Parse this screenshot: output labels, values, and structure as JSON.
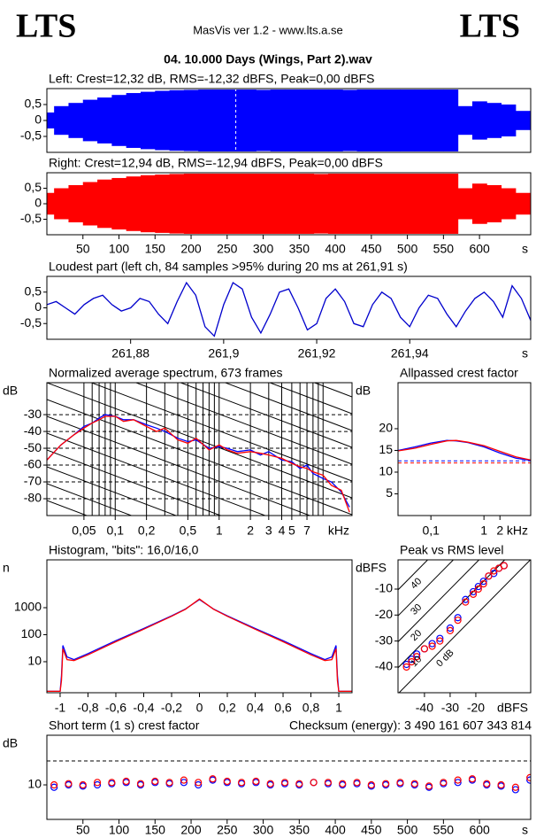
{
  "header": {
    "logo_left": "LTS",
    "logo_right": "LTS",
    "app": "MasVis ver 1.2 - www.lts.a.se",
    "file": "04. 10.000 Days (Wings, Part 2).wav"
  },
  "chart_data": [
    {
      "type": "waveform",
      "title": "Left: Crest=12,32 dB, RMS=-12,32 dBFS, Peak=0,00 dBFS",
      "color": "#0000ff",
      "x": [
        0,
        20,
        40,
        60,
        80,
        100,
        120,
        140,
        160,
        180,
        200,
        220,
        240,
        260,
        280,
        300,
        320,
        340,
        360,
        380,
        400,
        420,
        440,
        460,
        480,
        500,
        520,
        540,
        560,
        580,
        600,
        620,
        640,
        660
      ],
      "values": [
        0.25,
        0.45,
        0.55,
        0.65,
        0.72,
        0.8,
        0.86,
        0.9,
        0.93,
        0.95,
        0.96,
        0.97,
        0.97,
        0.97,
        0.97,
        0.96,
        0.97,
        0.97,
        0.97,
        0.97,
        0.97,
        0.96,
        0.97,
        0.97,
        0.97,
        0.97,
        0.97,
        0.97,
        0.97,
        0.45,
        0.6,
        0.55,
        0.5,
        0.3
      ],
      "marker_x": 262,
      "xlim": [
        0,
        671
      ],
      "ylim": [
        -1,
        1
      ],
      "yticks": [
        {
          "value": 0.5,
          "label": "0,5"
        },
        0,
        {
          "value": -0.5,
          "label": "-0,5"
        }
      ],
      "xticks": []
    },
    {
      "type": "waveform",
      "title": "Right: Crest=12,94 dB, RMS=-12,94 dBFS, Peak=0,00 dBFS",
      "color": "#ff0000",
      "x": [
        0,
        20,
        40,
        60,
        80,
        100,
        120,
        140,
        160,
        180,
        200,
        220,
        240,
        260,
        280,
        300,
        320,
        340,
        360,
        380,
        400,
        420,
        440,
        460,
        480,
        500,
        520,
        540,
        560,
        580,
        600,
        620,
        640,
        660
      ],
      "values": [
        0.35,
        0.5,
        0.6,
        0.7,
        0.78,
        0.83,
        0.88,
        0.92,
        0.94,
        0.96,
        0.97,
        0.97,
        0.97,
        0.97,
        0.97,
        0.97,
        0.97,
        0.97,
        0.97,
        0.96,
        0.97,
        0.97,
        0.97,
        0.97,
        0.97,
        0.97,
        0.97,
        0.97,
        0.97,
        0.5,
        0.65,
        0.6,
        0.5,
        0.35
      ],
      "xlim": [
        0,
        671
      ],
      "ylim": [
        -1,
        1
      ],
      "yticks": [
        {
          "value": 0.5,
          "label": "0,5"
        },
        0,
        {
          "value": -0.5,
          "label": "-0,5"
        }
      ],
      "xticks": [
        50,
        100,
        150,
        200,
        250,
        300,
        350,
        400,
        450,
        500,
        550,
        600
      ],
      "xunit": "s"
    },
    {
      "type": "line",
      "title": "Loudest part (left  ch, 84 samples >95% during 20 ms at 261,91 s)",
      "color": "#0000cc",
      "x": [
        261.862,
        261.864,
        261.866,
        261.868,
        261.87,
        261.872,
        261.874,
        261.876,
        261.878,
        261.88,
        261.882,
        261.884,
        261.886,
        261.888,
        261.89,
        261.892,
        261.894,
        261.896,
        261.898,
        261.9,
        261.902,
        261.904,
        261.906,
        261.908,
        261.91,
        261.912,
        261.914,
        261.916,
        261.918,
        261.92,
        261.922,
        261.924,
        261.926,
        261.928,
        261.93,
        261.932,
        261.934,
        261.936,
        261.938,
        261.94,
        261.942,
        261.944,
        261.946,
        261.948,
        261.95,
        261.952,
        261.954,
        261.956,
        261.958,
        261.96,
        261.962,
        261.964,
        261.966
      ],
      "values": [
        0.1,
        0.2,
        0.0,
        -0.2,
        0.1,
        0.3,
        0.4,
        0.1,
        -0.1,
        0.0,
        0.3,
        0.2,
        -0.2,
        -0.5,
        0.2,
        0.8,
        0.4,
        -0.6,
        -0.9,
        0.1,
        0.8,
        0.6,
        -0.3,
        -0.8,
        -0.2,
        0.5,
        0.6,
        0.0,
        -0.7,
        -0.5,
        0.3,
        0.6,
        0.2,
        -0.5,
        -0.6,
        0.1,
        0.5,
        0.3,
        -0.3,
        -0.6,
        0.0,
        0.4,
        0.3,
        -0.2,
        -0.6,
        -0.1,
        0.3,
        0.5,
        0.2,
        -0.3,
        0.7,
        0.3,
        -0.4
      ],
      "xlim": [
        261.862,
        261.966
      ],
      "ylim": [
        -1,
        1
      ],
      "yticks": [
        {
          "value": 0.5,
          "label": "0,5"
        },
        0,
        {
          "value": -0.5,
          "label": "-0,5"
        }
      ],
      "xticks": [
        {
          "value": 261.88,
          "label": "261,88"
        },
        {
          "value": 261.9,
          "label": "261,9"
        },
        {
          "value": 261.92,
          "label": "261,92"
        },
        {
          "value": 261.94,
          "label": "261,94"
        }
      ],
      "xunit": "s"
    },
    {
      "type": "line",
      "title": "Normalized average spectrum, 673 frames",
      "ylabel": "dB",
      "xunit": "kHz",
      "xlog": true,
      "grid": true,
      "diagonals": true,
      "x": [
        0.022,
        0.03,
        0.04,
        0.05,
        0.06,
        0.07,
        0.08,
        0.1,
        0.12,
        0.15,
        0.2,
        0.25,
        0.3,
        0.4,
        0.5,
        0.6,
        0.8,
        1,
        1.2,
        1.5,
        2,
        2.5,
        3,
        4,
        5,
        6,
        7,
        8,
        10,
        12,
        15,
        18
      ],
      "series": [
        {
          "color": "#0000ff",
          "values": [
            -57,
            -48,
            -42,
            -37,
            -35,
            -32,
            -30,
            -31,
            -33,
            -33,
            -36,
            -38,
            -40,
            -44,
            -46,
            -45,
            -50,
            -49,
            -50,
            -52,
            -51,
            -54,
            -52,
            -57,
            -58,
            -62,
            -60,
            -65,
            -68,
            -70,
            -76,
            -85
          ]
        },
        {
          "color": "#ff0000",
          "values": [
            -57,
            -48,
            -42,
            -38,
            -35,
            -33,
            -31,
            -31,
            -34,
            -33,
            -37,
            -40,
            -38,
            -45,
            -47,
            -44,
            -51,
            -48,
            -51,
            -53,
            -52,
            -53,
            -54,
            -56,
            -59,
            -61,
            -62,
            -64,
            -66,
            -72,
            -75,
            -88
          ]
        }
      ],
      "xlim": [
        0.022,
        19
      ],
      "ylim": [
        -90,
        -11
      ],
      "yticks": [
        -30,
        -40,
        -50,
        -60,
        -70,
        -80
      ],
      "xticks": [
        {
          "value": 0.05,
          "label": "0,05"
        },
        {
          "value": 0.1,
          "label": "0,1"
        },
        {
          "value": 0.2,
          "label": "0,2"
        },
        {
          "value": 0.5,
          "label": "0,5"
        },
        1,
        2,
        3,
        4,
        5,
        7
      ],
      "xgrid": [
        0.05,
        0.06,
        0.07,
        0.08,
        0.09,
        0.1,
        0.2,
        0.3,
        0.4,
        0.5,
        0.6,
        0.7,
        0.8,
        0.9,
        1,
        2,
        3,
        4,
        5,
        6,
        7,
        8,
        9,
        10
      ]
    },
    {
      "type": "line",
      "title": "Allpassed crest factor",
      "ylabel": "dB",
      "xunit": "kHz",
      "xlog": true,
      "x": [
        0.024,
        0.05,
        0.1,
        0.2,
        0.3,
        0.5,
        1,
        2,
        4,
        7.6
      ],
      "series": [
        {
          "color": "#0000ff",
          "values": [
            15,
            15.8,
            16.7,
            17.3,
            17.2,
            16.8,
            15.8,
            14.4,
            13.2,
            12.7
          ],
          "level_line": 12.6
        },
        {
          "color": "#ff0000",
          "values": [
            14.9,
            15.5,
            16.4,
            17.2,
            17.3,
            16.9,
            16.1,
            14.8,
            13.5,
            12.8
          ],
          "level_line": 12.1
        }
      ],
      "xlim": [
        0.024,
        7.6
      ],
      "ylim": [
        0,
        30.6
      ],
      "yticks": [
        20,
        15,
        10,
        5
      ],
      "xticks": [
        {
          "value": 0.1,
          "label": "0,1"
        },
        1,
        2
      ]
    },
    {
      "type": "line",
      "title": "Histogram, \"bits\": 16,0/16,0",
      "ylabel": "n",
      "ylog": true,
      "x": [
        -1.1,
        -1.0,
        -0.99,
        -0.98,
        -0.95,
        -0.9,
        -0.8,
        -0.6,
        -0.4,
        -0.2,
        -0.1,
        0,
        0.1,
        0.2,
        0.4,
        0.6,
        0.8,
        0.9,
        0.95,
        0.98,
        0.99,
        1.0,
        1.1
      ],
      "series": [
        {
          "color": "#0000ff",
          "values": [
            0.8,
            0.8,
            3,
            40,
            15,
            12,
            20,
            60,
            170,
            500,
            900,
            2000,
            900,
            500,
            170,
            60,
            20,
            12,
            15,
            40,
            3,
            0.8,
            0.8
          ]
        },
        {
          "color": "#ff0000",
          "values": [
            0.8,
            0.8,
            2,
            30,
            12,
            11,
            18,
            55,
            160,
            480,
            870,
            2100,
            880,
            480,
            160,
            55,
            18,
            11,
            12,
            30,
            2,
            0.8,
            0.8
          ]
        }
      ],
      "xlim": [
        -1.095,
        1.095
      ],
      "ylim": [
        0.71,
        59000
      ],
      "yticks": [
        1000,
        100,
        10
      ],
      "xticks": [
        -1,
        {
          "value": -0.8,
          "label": "-0,8"
        },
        {
          "value": -0.6,
          "label": "-0,6"
        },
        {
          "value": -0.4,
          "label": "-0,4"
        },
        {
          "value": -0.2,
          "label": "-0,2"
        },
        0,
        {
          "value": 0.2,
          "label": "0,2"
        },
        {
          "value": 0.4,
          "label": "0,4"
        },
        {
          "value": 0.6,
          "label": "0,6"
        },
        {
          "value": 0.8,
          "label": "0,8"
        },
        1
      ]
    },
    {
      "type": "scatter",
      "title": "Peak vs RMS level",
      "ylabel": "dBFS",
      "xunit": "dBFS",
      "x": [
        -47,
        -45,
        -43,
        -40,
        -37,
        -34,
        -30,
        -27,
        -24,
        -21,
        -19,
        -17,
        -15,
        -13,
        -11,
        -9
      ],
      "series": [
        {
          "color": "#0000ff",
          "values": [
            -39,
            -37,
            -35,
            -33,
            -31,
            -29,
            -25,
            -21,
            -14,
            -11,
            -9,
            -7,
            -5,
            -4,
            -2,
            -1
          ]
        },
        {
          "color": "#ff0000",
          "values": [
            -40,
            -38,
            -36,
            -33,
            -32,
            -30,
            -26,
            -22,
            -15,
            -12,
            -10,
            -8,
            -5,
            -3,
            -2,
            -1
          ]
        }
      ],
      "crest_lines": [
        40,
        30,
        20,
        10,
        {
          "value": 0,
          "label": "0 dB"
        }
      ],
      "xlim": [
        -50.3,
        1.38
      ],
      "ylim": [
        -49.9,
        1.25
      ],
      "yticks": [
        -10,
        -20,
        -30,
        -40
      ],
      "xticks": [
        -40,
        -30,
        -20
      ]
    },
    {
      "type": "scatter",
      "title": "Short term (1 s) crest factor",
      "annotation": "Checksum (energy):  3 490 161 607 343 814",
      "ylabel": "dB",
      "xunit": "s",
      "ref_line": 20,
      "x": [
        10,
        30,
        50,
        70,
        90,
        110,
        130,
        150,
        170,
        190,
        210,
        230,
        250,
        270,
        290,
        310,
        330,
        350,
        370,
        390,
        410,
        430,
        450,
        470,
        490,
        510,
        530,
        550,
        570,
        590,
        610,
        630,
        650,
        670
      ],
      "series": [
        {
          "color": "#0000ff",
          "values": [
            9,
            10,
            9.5,
            10,
            10.5,
            11,
            10,
            11,
            10.5,
            11,
            10,
            12,
            11,
            10.5,
            11,
            10,
            10.5,
            10,
            11,
            10.5,
            10,
            10.5,
            9.5,
            10,
            10.5,
            10,
            9,
            10.5,
            11,
            12,
            10,
            9.5,
            8,
            12
          ]
        },
        {
          "color": "#ff0000",
          "values": [
            10,
            10.5,
            10,
            11,
            11,
            11.5,
            10.5,
            11.5,
            11,
            12,
            11,
            12.5,
            11.5,
            11,
            11.5,
            10.5,
            11,
            10.5,
            11,
            11,
            10.5,
            11,
            10,
            10.5,
            11,
            10.5,
            9.5,
            11,
            12,
            12.5,
            10.5,
            10,
            9,
            13
          ]
        }
      ],
      "xlim": [
        0,
        671
      ],
      "ylim": [
        -4.4,
        30.7
      ],
      "yticks": [
        10
      ],
      "xticks": [
        50,
        100,
        150,
        200,
        250,
        300,
        350,
        400,
        450,
        500,
        550,
        600
      ]
    }
  ]
}
